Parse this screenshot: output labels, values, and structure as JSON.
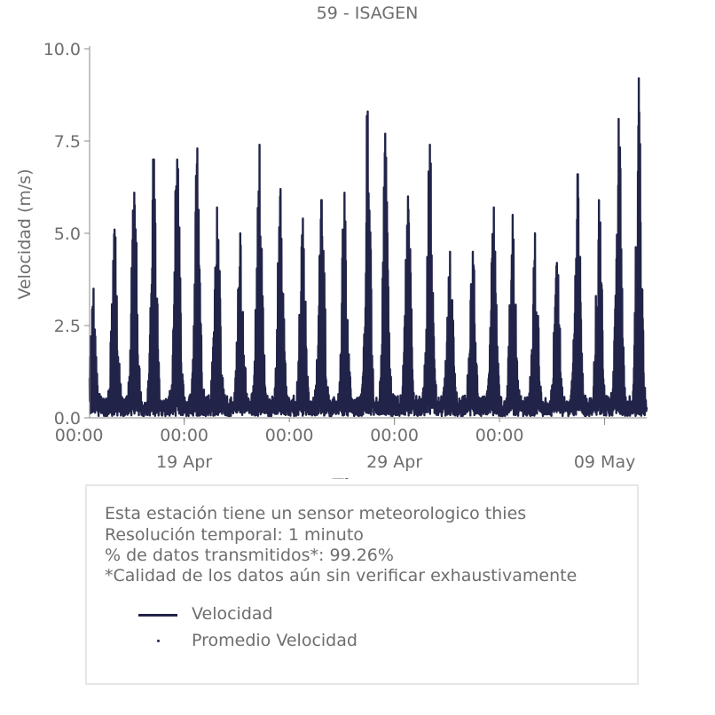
{
  "colors": {
    "series": "#212448",
    "text": "#6e6e6e",
    "axis": "#8a8a8a",
    "box_border": "#e6e6e6"
  },
  "chart_data": {
    "type": "line",
    "title": "59 - ISAGEN",
    "xlabel": "Tiempo",
    "ylabel": "Velocidad (m/s)",
    "ylim": [
      0,
      10
    ],
    "xlim": [
      "2025-04-14T12:00",
      "2025-05-11T00:00"
    ],
    "y_ticks": [
      "0.0",
      "2.5",
      "5.0",
      "7.5",
      "10.0"
    ],
    "x_tick_labels_major": [
      "00:00",
      "00:00",
      "00:00",
      "00:00",
      "00:00"
    ],
    "x_tick_labels_minor": [
      "19 Apr",
      "29 Apr",
      "09 May"
    ],
    "grid": false,
    "series": [
      {
        "name": "Velocidad",
        "style": "line",
        "daily_peaks": [
          {
            "day": "2025-04-14",
            "max": 3.5
          },
          {
            "day": "2025-04-15",
            "max": 5.1
          },
          {
            "day": "2025-04-16",
            "max": 6.1
          },
          {
            "day": "2025-04-17",
            "max": 7.0
          },
          {
            "day": "2025-04-18",
            "max": 7.0
          },
          {
            "day": "2025-04-19",
            "max": 7.3
          },
          {
            "day": "2025-04-20",
            "max": 5.7
          },
          {
            "day": "2025-04-21",
            "max": 5.0
          },
          {
            "day": "2025-04-22",
            "max": 7.4
          },
          {
            "day": "2025-04-23",
            "max": 6.2
          },
          {
            "day": "2025-04-24",
            "max": 5.4
          },
          {
            "day": "2025-04-25",
            "max": 5.9
          },
          {
            "day": "2025-04-26",
            "max": 6.1
          },
          {
            "day": "2025-04-27",
            "max": 8.3
          },
          {
            "day": "2025-04-28",
            "max": 7.7
          },
          {
            "day": "2025-04-29",
            "max": 6.0
          },
          {
            "day": "2025-04-30",
            "max": 7.4
          },
          {
            "day": "2025-05-01",
            "max": 4.5
          },
          {
            "day": "2025-05-02",
            "max": 4.5
          },
          {
            "day": "2025-05-03",
            "max": 5.7
          },
          {
            "day": "2025-05-04",
            "max": 5.5
          },
          {
            "day": "2025-05-05",
            "max": 5.0
          },
          {
            "day": "2025-05-06",
            "max": 4.2
          },
          {
            "day": "2025-05-07",
            "max": 6.6
          },
          {
            "day": "2025-05-08",
            "max": 5.9
          },
          {
            "day": "2025-05-09",
            "max": 8.1
          },
          {
            "day": "2025-05-10",
            "max": 9.2
          }
        ]
      },
      {
        "name": "Promedio Velocidad",
        "style": "dot"
      }
    ]
  },
  "info": {
    "line1": "Esta estación tiene un sensor meteorologico thies",
    "line2": "Resolución temporal: 1 minuto",
    "line3": "% de datos transmitidos*: 99.26%",
    "line4": "*Calidad de los datos aún sin verificar exhaustivamente"
  },
  "legend": [
    {
      "label": "Velocidad",
      "marker": "line"
    },
    {
      "label": "Promedio Velocidad",
      "marker": "dot"
    }
  ]
}
